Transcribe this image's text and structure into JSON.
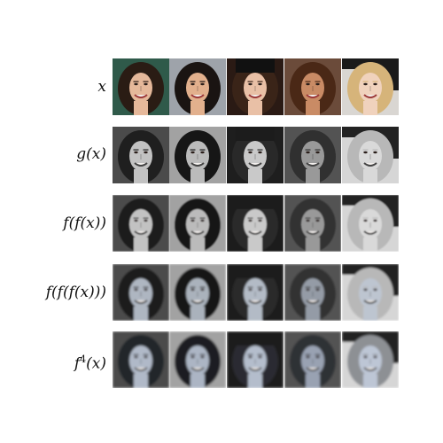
{
  "figure": {
    "rows": [
      {
        "label": "x",
        "mode": "color"
      },
      {
        "label": "g(x)",
        "mode": "gray-sharp"
      },
      {
        "label": "f(f(x))",
        "mode": "gray-soft"
      },
      {
        "label": "f(f(f(x)))",
        "mode": "blue-soft"
      },
      {
        "label": "f^4(x)",
        "label_base": "f",
        "label_sup": "4",
        "label_tail": "(x)",
        "mode": "blue-blur"
      }
    ],
    "faces": [
      {
        "name": "face-1",
        "bg": "#2f5a4a",
        "hair": "#2a1c14",
        "skin": "#e5b89a",
        "hat": false
      },
      {
        "name": "face-2",
        "bg": "#9ea3aa",
        "hair": "#1a1412",
        "skin": "#e2b08d",
        "hat": false
      },
      {
        "name": "face-3",
        "bg": "#2a1a14",
        "hair": "#3a2418",
        "skin": "#e9c0a6",
        "hat": true
      },
      {
        "name": "face-4",
        "bg": "#6b4b3a",
        "hair": "#4a2816",
        "skin": "#c98b65",
        "hat": false
      },
      {
        "name": "face-5",
        "bg": "#d9d6d2",
        "hair": "#d6b47a",
        "skin": "#f0d2bd",
        "hat": false,
        "dark_hands": true
      }
    ],
    "palette": {
      "gray_sharp_tone": "#777777",
      "gray_soft_tone": "#8a8a8a",
      "blue_tint": "#8aa0bf",
      "blue_blur_tint": "#9aaed0"
    }
  }
}
